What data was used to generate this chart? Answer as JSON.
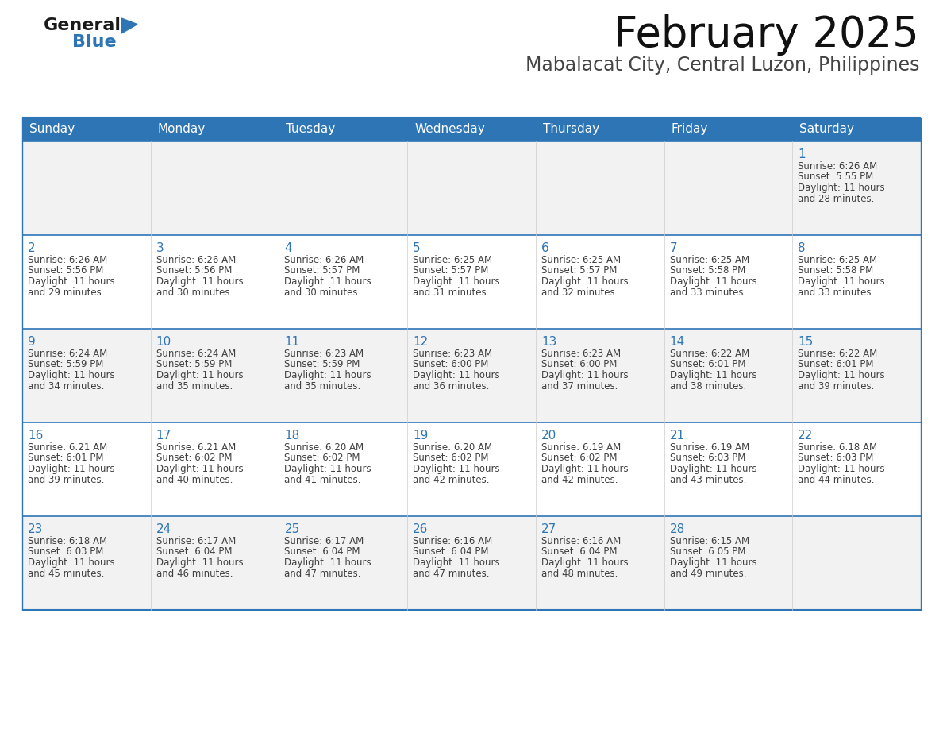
{
  "title": "February 2025",
  "subtitle": "Mabalacat City, Central Luzon, Philippines",
  "header_bg": "#2E75B6",
  "header_text_color": "#FFFFFF",
  "cell_bg_even": "#F2F2F2",
  "cell_bg_odd": "#FFFFFF",
  "day_number_color": "#2E75B6",
  "text_color": "#404040",
  "border_color": "#2E75B6",
  "days_of_week": [
    "Sunday",
    "Monday",
    "Tuesday",
    "Wednesday",
    "Thursday",
    "Friday",
    "Saturday"
  ],
  "calendar": [
    [
      null,
      null,
      null,
      null,
      null,
      null,
      {
        "day": "1",
        "sunrise": "6:26 AM",
        "sunset": "5:55 PM",
        "daylight_line1": "Daylight: 11 hours",
        "daylight_line2": "and 28 minutes."
      }
    ],
    [
      {
        "day": "2",
        "sunrise": "6:26 AM",
        "sunset": "5:56 PM",
        "daylight_line1": "Daylight: 11 hours",
        "daylight_line2": "and 29 minutes."
      },
      {
        "day": "3",
        "sunrise": "6:26 AM",
        "sunset": "5:56 PM",
        "daylight_line1": "Daylight: 11 hours",
        "daylight_line2": "and 30 minutes."
      },
      {
        "day": "4",
        "sunrise": "6:26 AM",
        "sunset": "5:57 PM",
        "daylight_line1": "Daylight: 11 hours",
        "daylight_line2": "and 30 minutes."
      },
      {
        "day": "5",
        "sunrise": "6:25 AM",
        "sunset": "5:57 PM",
        "daylight_line1": "Daylight: 11 hours",
        "daylight_line2": "and 31 minutes."
      },
      {
        "day": "6",
        "sunrise": "6:25 AM",
        "sunset": "5:57 PM",
        "daylight_line1": "Daylight: 11 hours",
        "daylight_line2": "and 32 minutes."
      },
      {
        "day": "7",
        "sunrise": "6:25 AM",
        "sunset": "5:58 PM",
        "daylight_line1": "Daylight: 11 hours",
        "daylight_line2": "and 33 minutes."
      },
      {
        "day": "8",
        "sunrise": "6:25 AM",
        "sunset": "5:58 PM",
        "daylight_line1": "Daylight: 11 hours",
        "daylight_line2": "and 33 minutes."
      }
    ],
    [
      {
        "day": "9",
        "sunrise": "6:24 AM",
        "sunset": "5:59 PM",
        "daylight_line1": "Daylight: 11 hours",
        "daylight_line2": "and 34 minutes."
      },
      {
        "day": "10",
        "sunrise": "6:24 AM",
        "sunset": "5:59 PM",
        "daylight_line1": "Daylight: 11 hours",
        "daylight_line2": "and 35 minutes."
      },
      {
        "day": "11",
        "sunrise": "6:23 AM",
        "sunset": "5:59 PM",
        "daylight_line1": "Daylight: 11 hours",
        "daylight_line2": "and 35 minutes."
      },
      {
        "day": "12",
        "sunrise": "6:23 AM",
        "sunset": "6:00 PM",
        "daylight_line1": "Daylight: 11 hours",
        "daylight_line2": "and 36 minutes."
      },
      {
        "day": "13",
        "sunrise": "6:23 AM",
        "sunset": "6:00 PM",
        "daylight_line1": "Daylight: 11 hours",
        "daylight_line2": "and 37 minutes."
      },
      {
        "day": "14",
        "sunrise": "6:22 AM",
        "sunset": "6:01 PM",
        "daylight_line1": "Daylight: 11 hours",
        "daylight_line2": "and 38 minutes."
      },
      {
        "day": "15",
        "sunrise": "6:22 AM",
        "sunset": "6:01 PM",
        "daylight_line1": "Daylight: 11 hours",
        "daylight_line2": "and 39 minutes."
      }
    ],
    [
      {
        "day": "16",
        "sunrise": "6:21 AM",
        "sunset": "6:01 PM",
        "daylight_line1": "Daylight: 11 hours",
        "daylight_line2": "and 39 minutes."
      },
      {
        "day": "17",
        "sunrise": "6:21 AM",
        "sunset": "6:02 PM",
        "daylight_line1": "Daylight: 11 hours",
        "daylight_line2": "and 40 minutes."
      },
      {
        "day": "18",
        "sunrise": "6:20 AM",
        "sunset": "6:02 PM",
        "daylight_line1": "Daylight: 11 hours",
        "daylight_line2": "and 41 minutes."
      },
      {
        "day": "19",
        "sunrise": "6:20 AM",
        "sunset": "6:02 PM",
        "daylight_line1": "Daylight: 11 hours",
        "daylight_line2": "and 42 minutes."
      },
      {
        "day": "20",
        "sunrise": "6:19 AM",
        "sunset": "6:02 PM",
        "daylight_line1": "Daylight: 11 hours",
        "daylight_line2": "and 42 minutes."
      },
      {
        "day": "21",
        "sunrise": "6:19 AM",
        "sunset": "6:03 PM",
        "daylight_line1": "Daylight: 11 hours",
        "daylight_line2": "and 43 minutes."
      },
      {
        "day": "22",
        "sunrise": "6:18 AM",
        "sunset": "6:03 PM",
        "daylight_line1": "Daylight: 11 hours",
        "daylight_line2": "and 44 minutes."
      }
    ],
    [
      {
        "day": "23",
        "sunrise": "6:18 AM",
        "sunset": "6:03 PM",
        "daylight_line1": "Daylight: 11 hours",
        "daylight_line2": "and 45 minutes."
      },
      {
        "day": "24",
        "sunrise": "6:17 AM",
        "sunset": "6:04 PM",
        "daylight_line1": "Daylight: 11 hours",
        "daylight_line2": "and 46 minutes."
      },
      {
        "day": "25",
        "sunrise": "6:17 AM",
        "sunset": "6:04 PM",
        "daylight_line1": "Daylight: 11 hours",
        "daylight_line2": "and 47 minutes."
      },
      {
        "day": "26",
        "sunrise": "6:16 AM",
        "sunset": "6:04 PM",
        "daylight_line1": "Daylight: 11 hours",
        "daylight_line2": "and 47 minutes."
      },
      {
        "day": "27",
        "sunrise": "6:16 AM",
        "sunset": "6:04 PM",
        "daylight_line1": "Daylight: 11 hours",
        "daylight_line2": "and 48 minutes."
      },
      {
        "day": "28",
        "sunrise": "6:15 AM",
        "sunset": "6:05 PM",
        "daylight_line1": "Daylight: 11 hours",
        "daylight_line2": "and 49 minutes."
      },
      null
    ]
  ],
  "logo_text1": "General",
  "logo_text2": "Blue",
  "logo_color1": "#1a1a1a",
  "logo_color2": "#2E75B6",
  "logo_triangle_color": "#2E75B6",
  "title_fontsize": 38,
  "subtitle_fontsize": 17,
  "header_fontsize": 11,
  "day_num_fontsize": 11,
  "cell_text_fontsize": 8.5
}
